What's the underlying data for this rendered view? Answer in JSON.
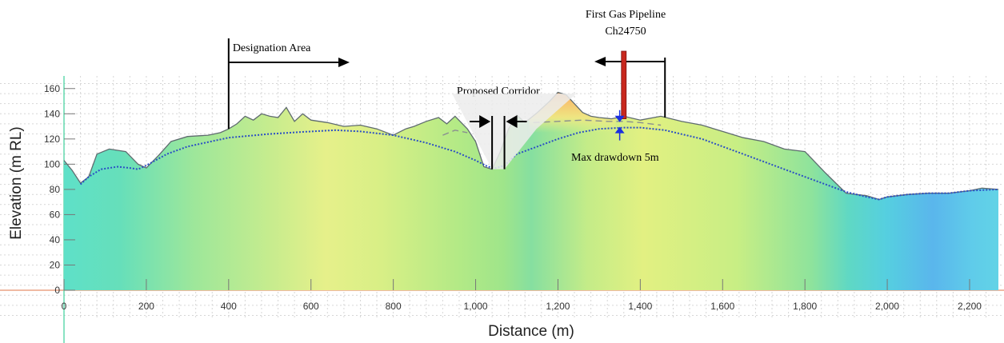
{
  "chart_data": {
    "type": "area",
    "xlabel": "Distance (m)",
    "ylabel": "Elevation (m RL)",
    "xlim": [
      0,
      2270
    ],
    "ylim": [
      0,
      170
    ],
    "xticks": [
      0,
      200,
      400,
      600,
      800,
      1000,
      1200,
      1400,
      1600,
      1800,
      2000,
      2200
    ],
    "yticks": [
      0,
      20,
      40,
      60,
      80,
      100,
      120,
      140,
      160
    ],
    "x_tick_labels": [
      "0",
      "200",
      "400",
      "600",
      "800",
      "1,000",
      "1,200",
      "1,400",
      "1,600",
      "1,800",
      "2,000",
      "2,200"
    ],
    "y_tick_labels": [
      "0",
      "20",
      "40",
      "60",
      "80",
      "100",
      "120",
      "140",
      "160"
    ],
    "grid": true,
    "series": [
      {
        "style": "ground-surface",
        "x": [
          0,
          20,
          40,
          60,
          80,
          110,
          150,
          180,
          200,
          230,
          260,
          300,
          350,
          380,
          400,
          420,
          440,
          460,
          480,
          500,
          520,
          540,
          560,
          580,
          600,
          640,
          680,
          720,
          760,
          800,
          830,
          850,
          880,
          910,
          930,
          950,
          980,
          1000,
          1020,
          1040,
          1060,
          1080,
          1100,
          1120,
          1150,
          1180,
          1200,
          1220,
          1240,
          1260,
          1280,
          1300,
          1330,
          1360,
          1400,
          1450,
          1500,
          1550,
          1600,
          1650,
          1700,
          1750,
          1800,
          1850,
          1900,
          1950,
          1980,
          2000,
          2050,
          2100,
          2150,
          2200,
          2230,
          2270
        ],
        "y": [
          103,
          95,
          85,
          90,
          108,
          112,
          110,
          100,
          97,
          107,
          118,
          122,
          123,
          125,
          128,
          132,
          138,
          135,
          140,
          138,
          137,
          145,
          134,
          140,
          135,
          133,
          130,
          131,
          128,
          123,
          128,
          130,
          134,
          137,
          132,
          138,
          128,
          118,
          98,
          96,
          110,
          128,
          139,
          133,
          141,
          150,
          157,
          155,
          148,
          141,
          138,
          137,
          136,
          138,
          135,
          138,
          134,
          131,
          126,
          121,
          118,
          112,
          110,
          93,
          77,
          75,
          72,
          74,
          76,
          77,
          77,
          79,
          81,
          80
        ]
      },
      {
        "style": "groundwater-dotted",
        "x": [
          40,
          60,
          90,
          130,
          160,
          180,
          200,
          250,
          300,
          400,
          500,
          600,
          660,
          720,
          800,
          880,
          950,
          1000,
          1030,
          1050,
          1070,
          1100,
          1150,
          1200,
          1250,
          1300,
          1360,
          1400,
          1460,
          1550,
          1650,
          1750,
          1850,
          1900,
          1950,
          1980,
          2000,
          2050,
          2100,
          2150,
          2200,
          2270
        ],
        "y": [
          84,
          90,
          96,
          98,
          97,
          96,
          99,
          108,
          114,
          121,
          124,
          126,
          127,
          126,
          123,
          117,
          110,
          103,
          98,
          97,
          99,
          108,
          114,
          120,
          125,
          128,
          129,
          129,
          127,
          120,
          108,
          96,
          84,
          78,
          74,
          72,
          74,
          76,
          77,
          77,
          79,
          80
        ]
      },
      {
        "style": "pre-drawdown-dashed",
        "x": [
          920,
          950,
          980
        ],
        "y": [
          123,
          127,
          125
        ]
      },
      {
        "style": "pre-drawdown-dashed",
        "x": [
          1140,
          1200,
          1260,
          1320,
          1360,
          1400,
          1450
        ],
        "y": [
          133,
          134,
          135,
          134,
          134,
          133,
          131
        ]
      }
    ],
    "annotations": [
      {
        "text": "Designation Area",
        "marker_x": 400,
        "arrow": "right"
      },
      {
        "text": "Proposed Corridor",
        "x_left": 1040,
        "x_right": 1070
      },
      {
        "text": "First Gas Pipeline",
        "marker_x": 1460,
        "pipe_x": 1360,
        "arrow": "left"
      },
      {
        "text": "Ch24750"
      },
      {
        "text": "Max drawdown 5m",
        "x": 1350,
        "y_top": 134,
        "y_bottom": 129
      }
    ]
  }
}
